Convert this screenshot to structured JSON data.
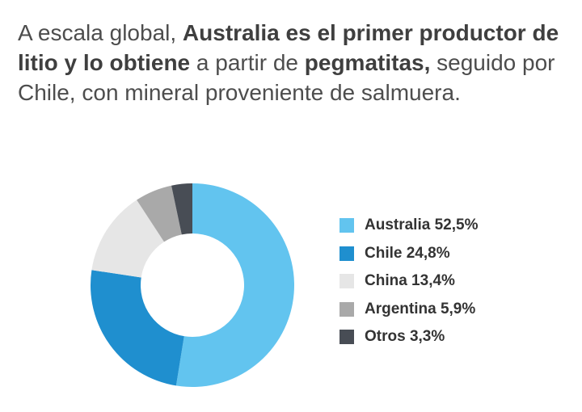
{
  "headline": {
    "t1": "A escala global, ",
    "b1": "Australia es el primer productor de litio y lo obtiene",
    "t2": " a partir de ",
    "b2": "pegmatitas,",
    "t3": " seguido por Chile, con mineral proveniente de salmuera."
  },
  "legend": [
    {
      "label": "Australia 52,5%"
    },
    {
      "label": "Chile 24,8%"
    },
    {
      "label": "China 13,4%"
    },
    {
      "label": "Argentina 5,9%"
    },
    {
      "label": "Otros 3,3%"
    }
  ],
  "chart_data": {
    "type": "pie",
    "variant": "donut",
    "title": "",
    "categories": [
      "Australia",
      "Chile",
      "China",
      "Argentina",
      "Otros"
    ],
    "values": [
      52.5,
      24.8,
      13.4,
      5.9,
      3.3
    ],
    "unit": "%",
    "colors": [
      "#62c4ef",
      "#1f8fcf",
      "#e6e6e6",
      "#a9a9a9",
      "#484d55"
    ],
    "start_angle": "top (12 o'clock), clockwise",
    "legend_position": "right"
  }
}
